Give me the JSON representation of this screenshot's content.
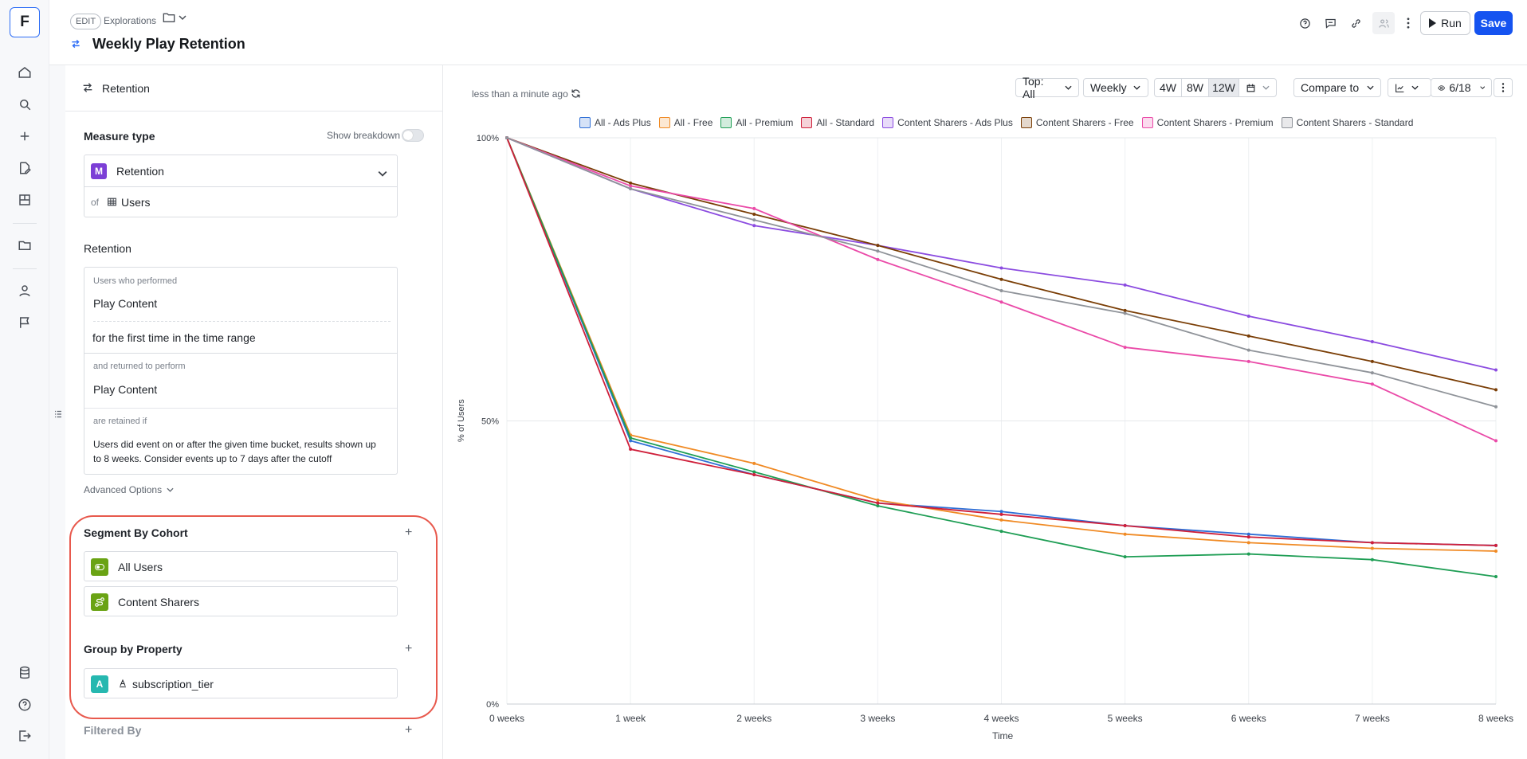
{
  "app": {
    "logo_letter": "F",
    "rail_icons": [
      "home-icon",
      "search-icon",
      "plus-icon",
      "edit-doc-icon",
      "board-icon",
      "folder-icon",
      "user-icon",
      "flag-icon",
      "database-icon",
      "help-icon",
      "logout-icon"
    ]
  },
  "header": {
    "edit_badge": "EDIT",
    "breadcrumb": "Explorations",
    "title": "Weekly Play Retention",
    "run_label": "Run",
    "save_label": "Save",
    "accent_color": "#1553f0"
  },
  "panel": {
    "header_label": "Retention",
    "measure_type_title": "Measure type",
    "show_breakdown_label": "Show breakdown",
    "measure_value": "Retention",
    "measure_badge": "M",
    "of_label": "of",
    "of_value": "Users",
    "retention_title": "Retention",
    "users_who_performed_label": "Users who performed",
    "first_event": "Play Content",
    "first_time_text": "for the first time in the time range",
    "returned_label": "and returned to perform",
    "return_event": "Play Content",
    "retained_if_label": "are retained if",
    "retained_desc": "Users did event on or after the given time bucket, results shown up to 8 weeks. Consider events up to 7 days after the cutoff",
    "advanced_options": "Advanced Options",
    "segment_title": "Segment By Cohort",
    "cohorts": [
      "All Users",
      "Content Sharers"
    ],
    "group_title": "Group by Property",
    "group_property": "subscription_tier",
    "group_badge": "A",
    "filtered_title": "Filtered By"
  },
  "toolbar": {
    "updated_text": "less than a minute ago",
    "top_select": "Top: All",
    "interval_select": "Weekly",
    "range_buttons": [
      "4W",
      "8W",
      "12W"
    ],
    "active_range": "12W",
    "compare_label": "Compare to",
    "visible_series": "6/18"
  },
  "chart_data": {
    "type": "line",
    "xlabel": "Time",
    "ylabel": "% of Users",
    "x": [
      "0 weeks",
      "1 week",
      "2 weeks",
      "3 weeks",
      "4 weeks",
      "5 weeks",
      "6 weeks",
      "7 weeks",
      "8 weeks"
    ],
    "y_ticks": [
      "0%",
      "50%",
      "100%"
    ],
    "ylim": [
      0,
      100
    ],
    "grid": true,
    "legend_position": "top",
    "series": [
      {
        "name": "All - Ads Plus",
        "color": "#2f6fd6",
        "values": [
          100,
          46.5,
          40.5,
          35.5,
          34,
          31.5,
          30,
          28.5,
          28
        ]
      },
      {
        "name": "All - Free",
        "color": "#f08a24",
        "values": [
          100,
          47.5,
          42.5,
          36,
          32.5,
          30,
          28.5,
          27.5,
          27
        ]
      },
      {
        "name": "All - Premium",
        "color": "#1f9e55",
        "values": [
          100,
          47,
          41,
          35,
          30.5,
          26,
          26.5,
          25.5,
          22.5
        ]
      },
      {
        "name": "All - Standard",
        "color": "#cf1f3a",
        "values": [
          100,
          45,
          40.5,
          35.5,
          33.5,
          31.5,
          29.5,
          28.5,
          28
        ]
      },
      {
        "name": "Content Sharers - Ads Plus",
        "color": "#8b4be0",
        "values": [
          100,
          91,
          84.5,
          81,
          77,
          74,
          68.5,
          64,
          59
        ]
      },
      {
        "name": "Content Sharers - Free",
        "color": "#7a3e06",
        "values": [
          100,
          92,
          86.5,
          81,
          75,
          69.5,
          65,
          60.5,
          55.5
        ]
      },
      {
        "name": "Content Sharers - Premium",
        "color": "#ea4aa8",
        "values": [
          100,
          91.5,
          87.5,
          78.5,
          71,
          63,
          60.5,
          56.5,
          46.5
        ]
      },
      {
        "name": "Content Sharers - Standard",
        "color": "#8f9399",
        "values": [
          100,
          91,
          85.5,
          80,
          73,
          69,
          62.5,
          58.5,
          52.5
        ]
      }
    ]
  }
}
